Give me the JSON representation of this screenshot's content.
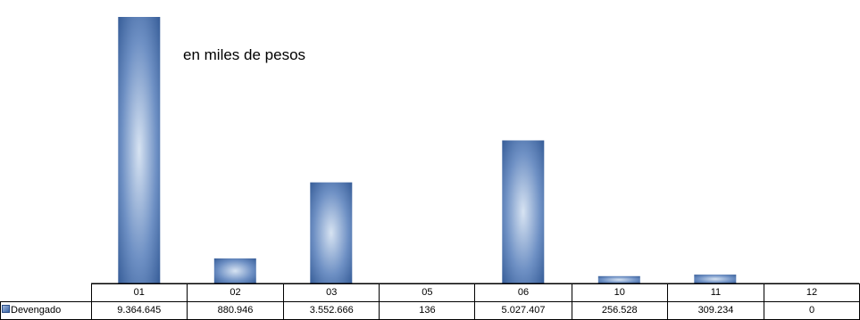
{
  "annotation": "en miles de pesos",
  "colors": {
    "bar_dark": "#2e5591",
    "bar_light": "#d7e3f2"
  },
  "chart_data": {
    "type": "bar",
    "categories": [
      "01",
      "02",
      "03",
      "05",
      "06",
      "10",
      "11",
      "12"
    ],
    "series": [
      {
        "name": "Devengado",
        "values": [
          9364645,
          880946,
          3552666,
          136,
          5027407,
          256528,
          309234,
          0
        ],
        "labels": [
          "9.364.645",
          "880.946",
          "3.552.666",
          "136",
          "5.027.407",
          "256.528",
          "309.234",
          "0"
        ]
      }
    ],
    "ylim": [
      0,
      9364645
    ],
    "grid": false,
    "legend": "data-table"
  }
}
